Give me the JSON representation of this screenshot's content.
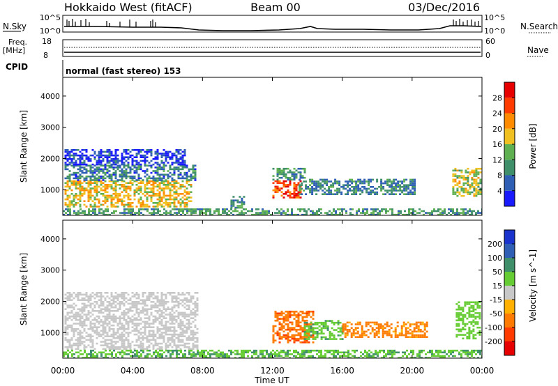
{
  "header": {
    "title": "Hokkaido West (fitACF)",
    "beam": "Beam 00",
    "date": "03/Dec/2016"
  },
  "strip": {
    "nsky_label": "N.Sky",
    "nsky_ticks": [
      "10^5",
      "10^0"
    ],
    "nsearch_label": "N.Search",
    "nsearch_ticks": [
      "10^5",
      "10^0"
    ],
    "freq_label_1": "Freq.",
    "freq_label_2": "[MHz]",
    "freq_ticks": [
      "18",
      "8"
    ],
    "nave_label": "Nave",
    "nave_ticks": [
      "60",
      "0"
    ],
    "cpid_label": "CPID",
    "cpid_text": "normal (fast stereo) 153"
  },
  "colors": {
    "power_scale": [
      "#1a1aff",
      "#2f5fb5",
      "#3f8f6a",
      "#5fb050",
      "#f0c020",
      "#ff8c00",
      "#ff3b00",
      "#e60000"
    ],
    "velocity_scale": [
      "#1a33cc",
      "#2f5fb5",
      "#3f8f6a",
      "#66cc33",
      "#c8c8c8",
      "#ffb000",
      "#ff7a00",
      "#ff3b00",
      "#e60000"
    ]
  },
  "chart_data": [
    {
      "type": "heatmap",
      "title": "",
      "xlabel": "Time UT",
      "ylabel": "Slant Range [km]",
      "x_ticks": [
        "00:00",
        "04:00",
        "08:00",
        "12:00",
        "16:00",
        "20:00",
        "00:00"
      ],
      "xlim_hours": [
        0,
        24
      ],
      "y_ticks": [
        1000,
        2000,
        3000,
        4000
      ],
      "ylim": [
        180,
        4600
      ],
      "colorbar_label": "Power [dB]",
      "colorbar_ticks": [
        4,
        8,
        12,
        16,
        20,
        24,
        28
      ],
      "regions": [
        {
          "t0": 0.1,
          "t1": 7.3,
          "r0": 450,
          "r1": 1300,
          "value": 18
        },
        {
          "t0": 0.1,
          "t1": 7.6,
          "r0": 1300,
          "r1": 1800,
          "value": 8
        },
        {
          "t0": 0.1,
          "t1": 7.0,
          "r0": 1800,
          "r1": 2300,
          "value": 4
        },
        {
          "t0": 12.0,
          "t1": 13.6,
          "r0": 750,
          "r1": 1300,
          "value": 26
        },
        {
          "t0": 12.0,
          "t1": 13.8,
          "r0": 1300,
          "r1": 1700,
          "value": 10
        },
        {
          "t0": 13.5,
          "t1": 20.2,
          "r0": 850,
          "r1": 1350,
          "value": 9
        },
        {
          "t0": 9.6,
          "t1": 10.4,
          "r0": 450,
          "r1": 800,
          "value": 9
        },
        {
          "t0": 22.3,
          "t1": 23.9,
          "r0": 800,
          "r1": 1700,
          "value": 16
        },
        {
          "t0": 0.0,
          "t1": 24.0,
          "r0": 200,
          "r1": 400,
          "value": 11
        }
      ]
    },
    {
      "type": "heatmap",
      "title": "",
      "xlabel": "Time UT",
      "ylabel": "Slant Range [km]",
      "x_ticks": [
        "00:00",
        "04:00",
        "08:00",
        "12:00",
        "16:00",
        "20:00",
        "00:00"
      ],
      "xlim_hours": [
        0,
        24
      ],
      "y_ticks": [
        1000,
        2000,
        3000,
        4000
      ],
      "ylim": [
        180,
        4600
      ],
      "colorbar_label": "Velocity [m s^-1]",
      "colorbar_ticks": [
        200,
        100,
        50,
        15,
        -15,
        -50,
        -100,
        -200
      ],
      "regions": [
        {
          "t0": 0.1,
          "t1": 7.7,
          "r0": 450,
          "r1": 2300,
          "value": 0
        },
        {
          "t0": 12.0,
          "t1": 14.3,
          "r0": 700,
          "r1": 1700,
          "value": -90
        },
        {
          "t0": 13.8,
          "t1": 16.0,
          "r0": 800,
          "r1": 1400,
          "value": 40
        },
        {
          "t0": 16.0,
          "t1": 21.0,
          "r0": 850,
          "r1": 1350,
          "value": -60
        },
        {
          "t0": 22.5,
          "t1": 23.9,
          "r0": 800,
          "r1": 2000,
          "value": 30
        },
        {
          "t0": 0.0,
          "t1": 24.0,
          "r0": 200,
          "r1": 450,
          "value": 45
        }
      ]
    }
  ]
}
